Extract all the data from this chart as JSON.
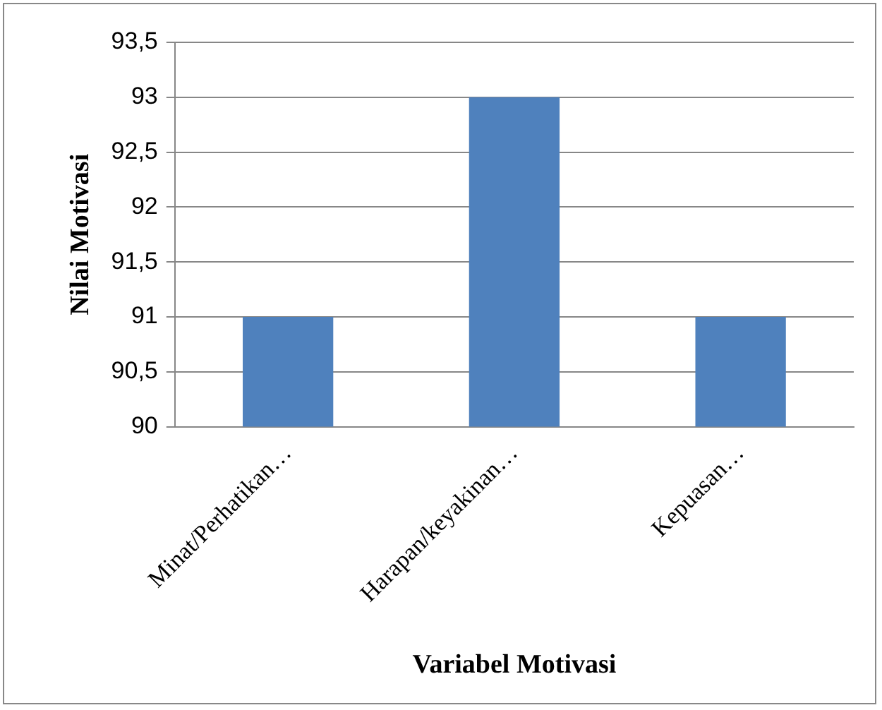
{
  "chart_data": {
    "type": "bar",
    "xlabel": "Variabel Motivasi",
    "ylabel": "Nilai Motivasi",
    "categories": [
      "Minat/Perhatikan…",
      "Harapan/keyakinan…",
      "Kepuasan…"
    ],
    "values": [
      91,
      93,
      91
    ],
    "color": "#4f81bd",
    "ylim": [
      90,
      93.5
    ],
    "yticks": [
      90,
      {
        "value": 90.5,
        "label": "90,5"
      },
      91,
      {
        "value": 91.5,
        "label": "91,5"
      },
      92,
      {
        "value": 92.5,
        "label": "92,5"
      },
      93,
      {
        "value": 93.5,
        "label": "93,5"
      }
    ],
    "grid": "y",
    "legend": false
  }
}
